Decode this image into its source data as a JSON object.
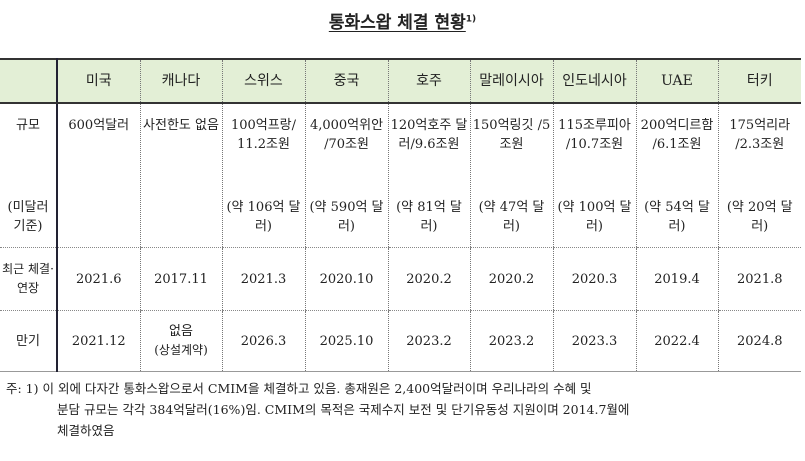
{
  "title": "통화스왑 체결 현황",
  "title_footnote_mark": "1)",
  "columns": [
    "",
    "미국",
    "캐나다",
    "스위스",
    "중국",
    "호주",
    "말레이시아",
    "인도네시아",
    "UAE",
    "터키"
  ],
  "rows": {
    "size": {
      "label": "규모",
      "sublabel": "(미달러 기준)",
      "values": [
        "600억달러",
        "사전한도 없음",
        "100억프랑/ 11.2조원",
        "4,000억위안 /70조원",
        "120억호주 달러/9.6조원",
        "150억링깃 /5조원",
        "115조루피아 /10.7조원",
        "200억디르함 /6.1조원",
        "175억리라 /2.3조원"
      ],
      "usd": [
        "",
        "",
        "(약 106억 달러)",
        "(약 590억 달러)",
        "(약 81억 달러)",
        "(약 47억 달러)",
        "(약 100억 달러)",
        "(약 54억 달러)",
        "(약 20억 달러)"
      ]
    },
    "recent": {
      "label": "최근 체결· 연장",
      "values": [
        "2021.6",
        "2017.11",
        "2021.3",
        "2020.10",
        "2020.2",
        "2020.2",
        "2020.3",
        "2019.4",
        "2021.8"
      ]
    },
    "maturity": {
      "label": "만기",
      "values": [
        "2021.12",
        "없음",
        "2026.3",
        "2025.10",
        "2023.2",
        "2023.2",
        "2023.3",
        "2022.4",
        "2024.8"
      ],
      "canada_note": "(상설계약)"
    }
  },
  "footnote": {
    "line1": "주: 1) 이 외에 다자간 통화스왑으로서 CMIM을 체결하고 있음. 총재원은 2,400억달러이며 우리나라의 수혜 및",
    "line2": "분담 규모는 각각 384억달러(16%)임. CMIM의 목적은 국제수지 보전 및 단기유동성 지원이며 2014.7월에",
    "line3": "체결하였음"
  },
  "colors": {
    "header_bg": "#e3efd6"
  }
}
